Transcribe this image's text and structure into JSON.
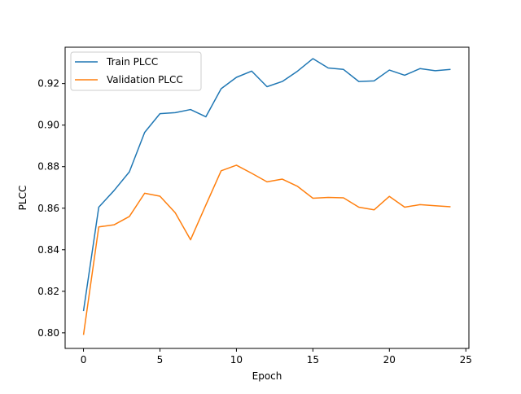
{
  "chart_data": {
    "type": "line",
    "title": "",
    "xlabel": "Epoch",
    "ylabel": "PLCC",
    "xlim": [
      -1.2,
      25.2
    ],
    "ylim": [
      0.7925,
      0.9375
    ],
    "xticks": [
      0,
      5,
      10,
      15,
      20,
      25
    ],
    "yticks": [
      0.8,
      0.82,
      0.84,
      0.86,
      0.88,
      0.9,
      0.92
    ],
    "grid": false,
    "legend_position": "top-left",
    "x": [
      0,
      1,
      2,
      3,
      4,
      5,
      6,
      7,
      8,
      9,
      10,
      11,
      12,
      13,
      14,
      15,
      16,
      17,
      18,
      19,
      20,
      21,
      22,
      23,
      24
    ],
    "series": [
      {
        "name": "Train PLCC",
        "color": "#1f77b4",
        "values": [
          0.8105,
          0.8605,
          0.8685,
          0.8775,
          0.8965,
          0.9055,
          0.906,
          0.9075,
          0.904,
          0.9175,
          0.923,
          0.926,
          0.9185,
          0.921,
          0.926,
          0.932,
          0.9275,
          0.9268,
          0.921,
          0.9213,
          0.9265,
          0.924,
          0.9272,
          0.9262,
          0.9268
        ]
      },
      {
        "name": "Validation PLCC",
        "color": "#ff7f0e",
        "values": [
          0.799,
          0.851,
          0.852,
          0.856,
          0.8672,
          0.8658,
          0.8578,
          0.8448,
          0.8615,
          0.878,
          0.8807,
          0.8768,
          0.8727,
          0.874,
          0.8705,
          0.8648,
          0.8652,
          0.865,
          0.8605,
          0.8592,
          0.8657,
          0.8605,
          0.8617,
          0.8612,
          0.8607
        ]
      }
    ]
  }
}
